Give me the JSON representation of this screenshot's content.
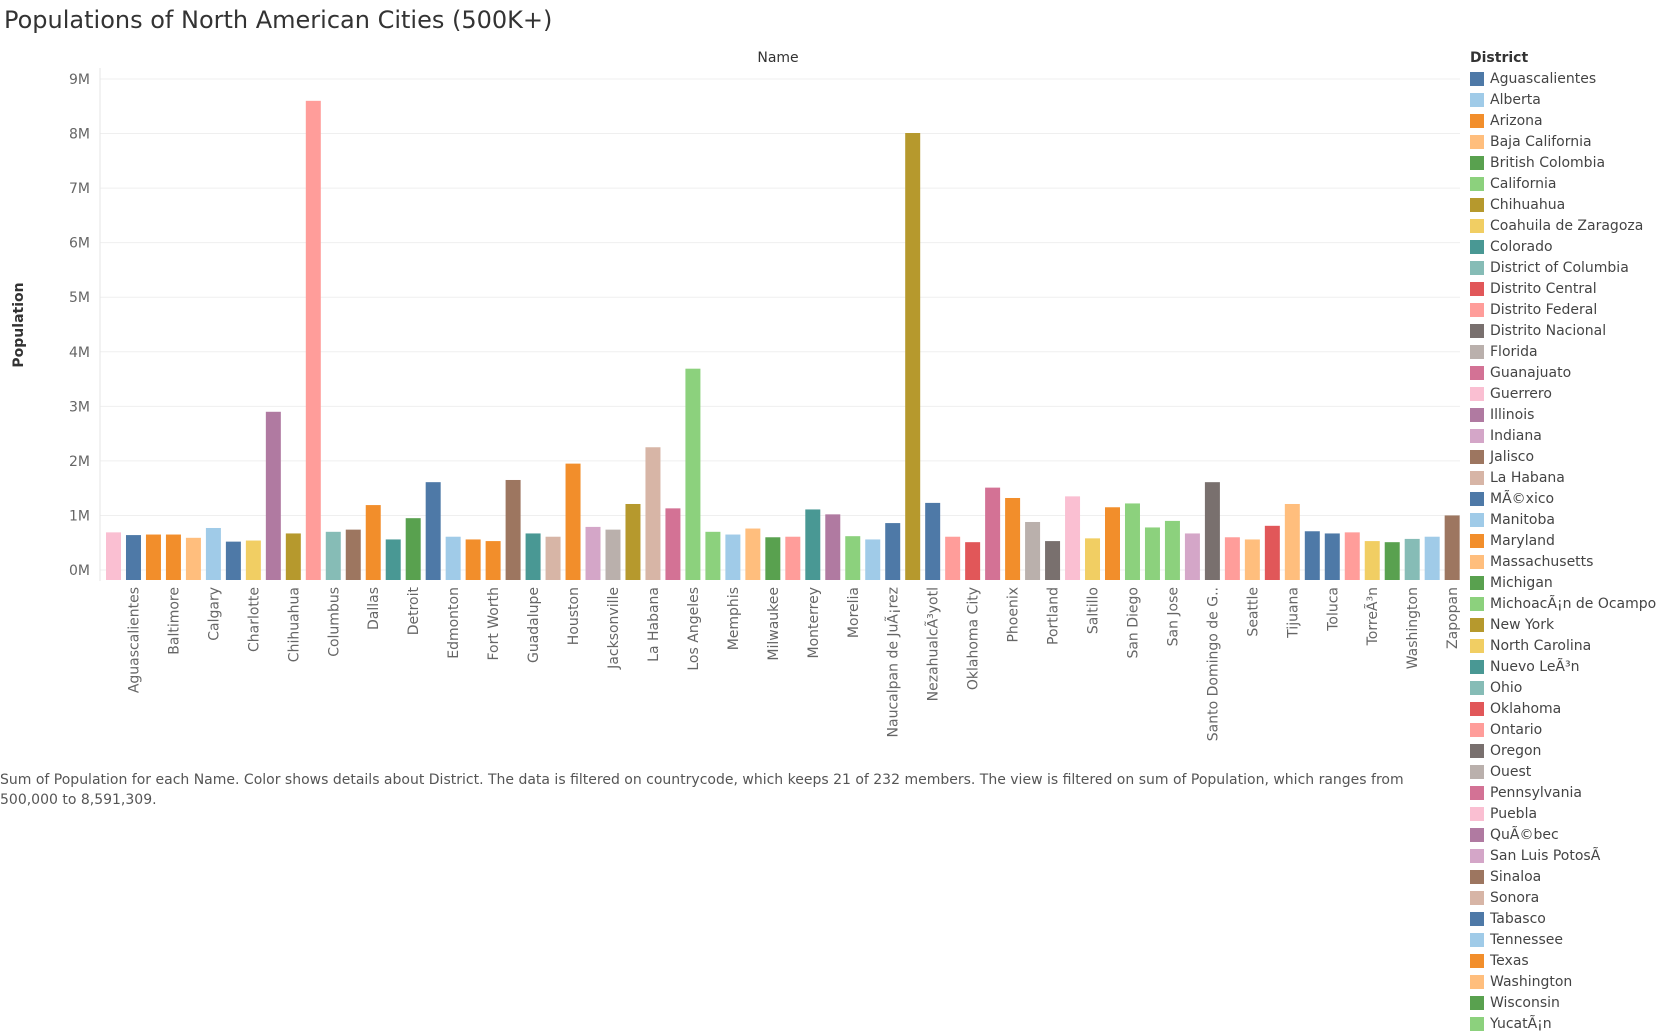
{
  "page": {
    "title": "Populations of North American Cities (500K+)",
    "caption": "Sum of Population for each Name.  Color shows details about District. The data is filtered on countrycode, which keeps 21 of 232 members. The view is filtered on sum of Population, which ranges from 500,000 to 8,591,309."
  },
  "legend": {
    "title": "District",
    "items": [
      {
        "label": "Aguascalientes",
        "color": "#4e79a7"
      },
      {
        "label": "Alberta",
        "color": "#a0cbe8"
      },
      {
        "label": "Arizona",
        "color": "#f28e2b"
      },
      {
        "label": "Baja California",
        "color": "#ffbe7d"
      },
      {
        "label": "British Colombia",
        "color": "#59a14f"
      },
      {
        "label": "California",
        "color": "#8cd17d"
      },
      {
        "label": "Chihuahua",
        "color": "#b6992d"
      },
      {
        "label": "Coahuila de Zaragoza",
        "color": "#f1ce63"
      },
      {
        "label": "Colorado",
        "color": "#499894"
      },
      {
        "label": "District of Columbia",
        "color": "#86bcb6"
      },
      {
        "label": "Distrito Central",
        "color": "#e15759"
      },
      {
        "label": "Distrito Federal",
        "color": "#ff9d9a"
      },
      {
        "label": "Distrito Nacional",
        "color": "#79706e"
      },
      {
        "label": "Florida",
        "color": "#bab0ac"
      },
      {
        "label": "Guanajuato",
        "color": "#d37295"
      },
      {
        "label": "Guerrero",
        "color": "#fabfd2"
      },
      {
        "label": "Illinois",
        "color": "#b07aa1"
      },
      {
        "label": "Indiana",
        "color": "#d4a6c8"
      },
      {
        "label": "Jalisco",
        "color": "#9d7660"
      },
      {
        "label": "La Habana",
        "color": "#d7b5a6"
      },
      {
        "label": "MÃ©xico",
        "color": "#4e79a7"
      },
      {
        "label": "Manitoba",
        "color": "#a0cbe8"
      },
      {
        "label": "Maryland",
        "color": "#f28e2b"
      },
      {
        "label": "Massachusetts",
        "color": "#ffbe7d"
      },
      {
        "label": "Michigan",
        "color": "#59a14f"
      },
      {
        "label": "MichoacÃ¡n de Ocampo",
        "color": "#8cd17d"
      },
      {
        "label": "New York",
        "color": "#b6992d"
      },
      {
        "label": "North Carolina",
        "color": "#f1ce63"
      },
      {
        "label": "Nuevo LeÃ³n",
        "color": "#499894"
      },
      {
        "label": "Ohio",
        "color": "#86bcb6"
      },
      {
        "label": "Oklahoma",
        "color": "#e15759"
      },
      {
        "label": "Ontario",
        "color": "#ff9d9a"
      },
      {
        "label": "Oregon",
        "color": "#79706e"
      },
      {
        "label": "Ouest",
        "color": "#bab0ac"
      },
      {
        "label": "Pennsylvania",
        "color": "#d37295"
      },
      {
        "label": "Puebla",
        "color": "#fabfd2"
      },
      {
        "label": "QuÃ©bec",
        "color": "#b07aa1"
      },
      {
        "label": "San Luis PotosÃ",
        "color": "#d4a6c8"
      },
      {
        "label": "Sinaloa",
        "color": "#9d7660"
      },
      {
        "label": "Sonora",
        "color": "#d7b5a6"
      },
      {
        "label": "Tabasco",
        "color": "#4e79a7"
      },
      {
        "label": "Tennessee",
        "color": "#a0cbe8"
      },
      {
        "label": "Texas",
        "color": "#f28e2b"
      },
      {
        "label": "Washington",
        "color": "#ffbe7d"
      },
      {
        "label": "Wisconsin",
        "color": "#59a14f"
      },
      {
        "label": "YucatÃ¡n",
        "color": "#8cd17d"
      }
    ]
  },
  "chart_data": {
    "type": "bar",
    "title": "Populations of North American Cities (500K+)",
    "column_header": "Name",
    "ylabel": "Population",
    "ylim": [
      0,
      9000000
    ],
    "yticks": [
      0,
      1000000,
      2000000,
      3000000,
      4000000,
      5000000,
      6000000,
      7000000,
      8000000,
      9000000
    ],
    "ytick_labels": [
      "0M",
      "1M",
      "2M",
      "3M",
      "4M",
      "5M",
      "6M",
      "7M",
      "8M",
      "9M"
    ],
    "grid": true,
    "legend_position": "right",
    "bars": [
      {
        "value": 690000,
        "color": "#fabfd2",
        "label": ""
      },
      {
        "value": 640000,
        "color": "#4e79a7",
        "label": "Aguascalientes"
      },
      {
        "value": 650000,
        "color": "#f28e2b",
        "label": ""
      },
      {
        "value": 650000,
        "color": "#f28e2b",
        "label": "Baltimore"
      },
      {
        "value": 590000,
        "color": "#ffbe7d",
        "label": ""
      },
      {
        "value": 770000,
        "color": "#a0cbe8",
        "label": "Calgary"
      },
      {
        "value": 520000,
        "color": "#4e79a7",
        "label": ""
      },
      {
        "value": 540000,
        "color": "#f1ce63",
        "label": "Charlotte"
      },
      {
        "value": 2900000,
        "color": "#b07aa1",
        "label": ""
      },
      {
        "value": 670000,
        "color": "#b6992d",
        "label": "Chihuahua"
      },
      {
        "value": 8600000,
        "color": "#ff9d9a",
        "label": ""
      },
      {
        "value": 700000,
        "color": "#86bcb6",
        "label": "Columbus"
      },
      {
        "value": 740000,
        "color": "#9d7660",
        "label": ""
      },
      {
        "value": 1190000,
        "color": "#f28e2b",
        "label": "Dallas"
      },
      {
        "value": 560000,
        "color": "#499894",
        "label": ""
      },
      {
        "value": 950000,
        "color": "#59a14f",
        "label": "Detroit"
      },
      {
        "value": 1610000,
        "color": "#4e79a7",
        "label": ""
      },
      {
        "value": 610000,
        "color": "#a0cbe8",
        "label": "Edmonton"
      },
      {
        "value": 560000,
        "color": "#f28e2b",
        "label": ""
      },
      {
        "value": 530000,
        "color": "#f28e2b",
        "label": "Fort Worth"
      },
      {
        "value": 1650000,
        "color": "#9d7660",
        "label": ""
      },
      {
        "value": 670000,
        "color": "#499894",
        "label": "Guadalupe"
      },
      {
        "value": 610000,
        "color": "#d7b5a6",
        "label": ""
      },
      {
        "value": 1950000,
        "color": "#f28e2b",
        "label": "Houston"
      },
      {
        "value": 790000,
        "color": "#d4a6c8",
        "label": ""
      },
      {
        "value": 740000,
        "color": "#bab0ac",
        "label": "Jacksonville"
      },
      {
        "value": 1210000,
        "color": "#b6992d",
        "label": ""
      },
      {
        "value": 2250000,
        "color": "#d7b5a6",
        "label": "La Habana"
      },
      {
        "value": 1130000,
        "color": "#d37295",
        "label": ""
      },
      {
        "value": 3690000,
        "color": "#8cd17d",
        "label": "Los Angeles"
      },
      {
        "value": 700000,
        "color": "#8cd17d",
        "label": ""
      },
      {
        "value": 650000,
        "color": "#a0cbe8",
        "label": "Memphis"
      },
      {
        "value": 760000,
        "color": "#ffbe7d",
        "label": ""
      },
      {
        "value": 600000,
        "color": "#59a14f",
        "label": "Milwaukee"
      },
      {
        "value": 610000,
        "color": "#ff9d9a",
        "label": ""
      },
      {
        "value": 1110000,
        "color": "#499894",
        "label": "Monterrey"
      },
      {
        "value": 1020000,
        "color": "#b07aa1",
        "label": ""
      },
      {
        "value": 620000,
        "color": "#8cd17d",
        "label": "Morelia"
      },
      {
        "value": 560000,
        "color": "#a0cbe8",
        "label": ""
      },
      {
        "value": 860000,
        "color": "#4e79a7",
        "label": "Naucalpan de JuÃ¡rez"
      },
      {
        "value": 8010000,
        "color": "#b6992d",
        "label": ""
      },
      {
        "value": 1230000,
        "color": "#4e79a7",
        "label": "NezahualcÃ³yotl"
      },
      {
        "value": 610000,
        "color": "#ff9d9a",
        "label": ""
      },
      {
        "value": 510000,
        "color": "#e15759",
        "label": "Oklahoma City"
      },
      {
        "value": 1510000,
        "color": "#d37295",
        "label": ""
      },
      {
        "value": 1320000,
        "color": "#f28e2b",
        "label": "Phoenix"
      },
      {
        "value": 880000,
        "color": "#bab0ac",
        "label": ""
      },
      {
        "value": 530000,
        "color": "#79706e",
        "label": "Portland"
      },
      {
        "value": 1350000,
        "color": "#fabfd2",
        "label": ""
      },
      {
        "value": 580000,
        "color": "#f1ce63",
        "label": "Saltillo"
      },
      {
        "value": 1150000,
        "color": "#f28e2b",
        "label": ""
      },
      {
        "value": 1220000,
        "color": "#8cd17d",
        "label": "San Diego"
      },
      {
        "value": 780000,
        "color": "#8cd17d",
        "label": ""
      },
      {
        "value": 900000,
        "color": "#8cd17d",
        "label": "San Jose"
      },
      {
        "value": 670000,
        "color": "#d4a6c8",
        "label": ""
      },
      {
        "value": 1610000,
        "color": "#79706e",
        "label": "Santo Domingo de G.."
      },
      {
        "value": 600000,
        "color": "#ff9d9a",
        "label": ""
      },
      {
        "value": 560000,
        "color": "#ffbe7d",
        "label": "Seattle"
      },
      {
        "value": 810000,
        "color": "#e15759",
        "label": ""
      },
      {
        "value": 1210000,
        "color": "#ffbe7d",
        "label": "Tijuana"
      },
      {
        "value": 710000,
        "color": "#4e79a7",
        "label": ""
      },
      {
        "value": 670000,
        "color": "#4e79a7",
        "label": "Toluca"
      },
      {
        "value": 690000,
        "color": "#ff9d9a",
        "label": ""
      },
      {
        "value": 530000,
        "color": "#f1ce63",
        "label": "TorreÃ³n"
      },
      {
        "value": 510000,
        "color": "#59a14f",
        "label": ""
      },
      {
        "value": 570000,
        "color": "#86bcb6",
        "label": "Washington"
      },
      {
        "value": 610000,
        "color": "#a0cbe8",
        "label": ""
      },
      {
        "value": 1000000,
        "color": "#9d7660",
        "label": "Zapopan"
      }
    ]
  }
}
